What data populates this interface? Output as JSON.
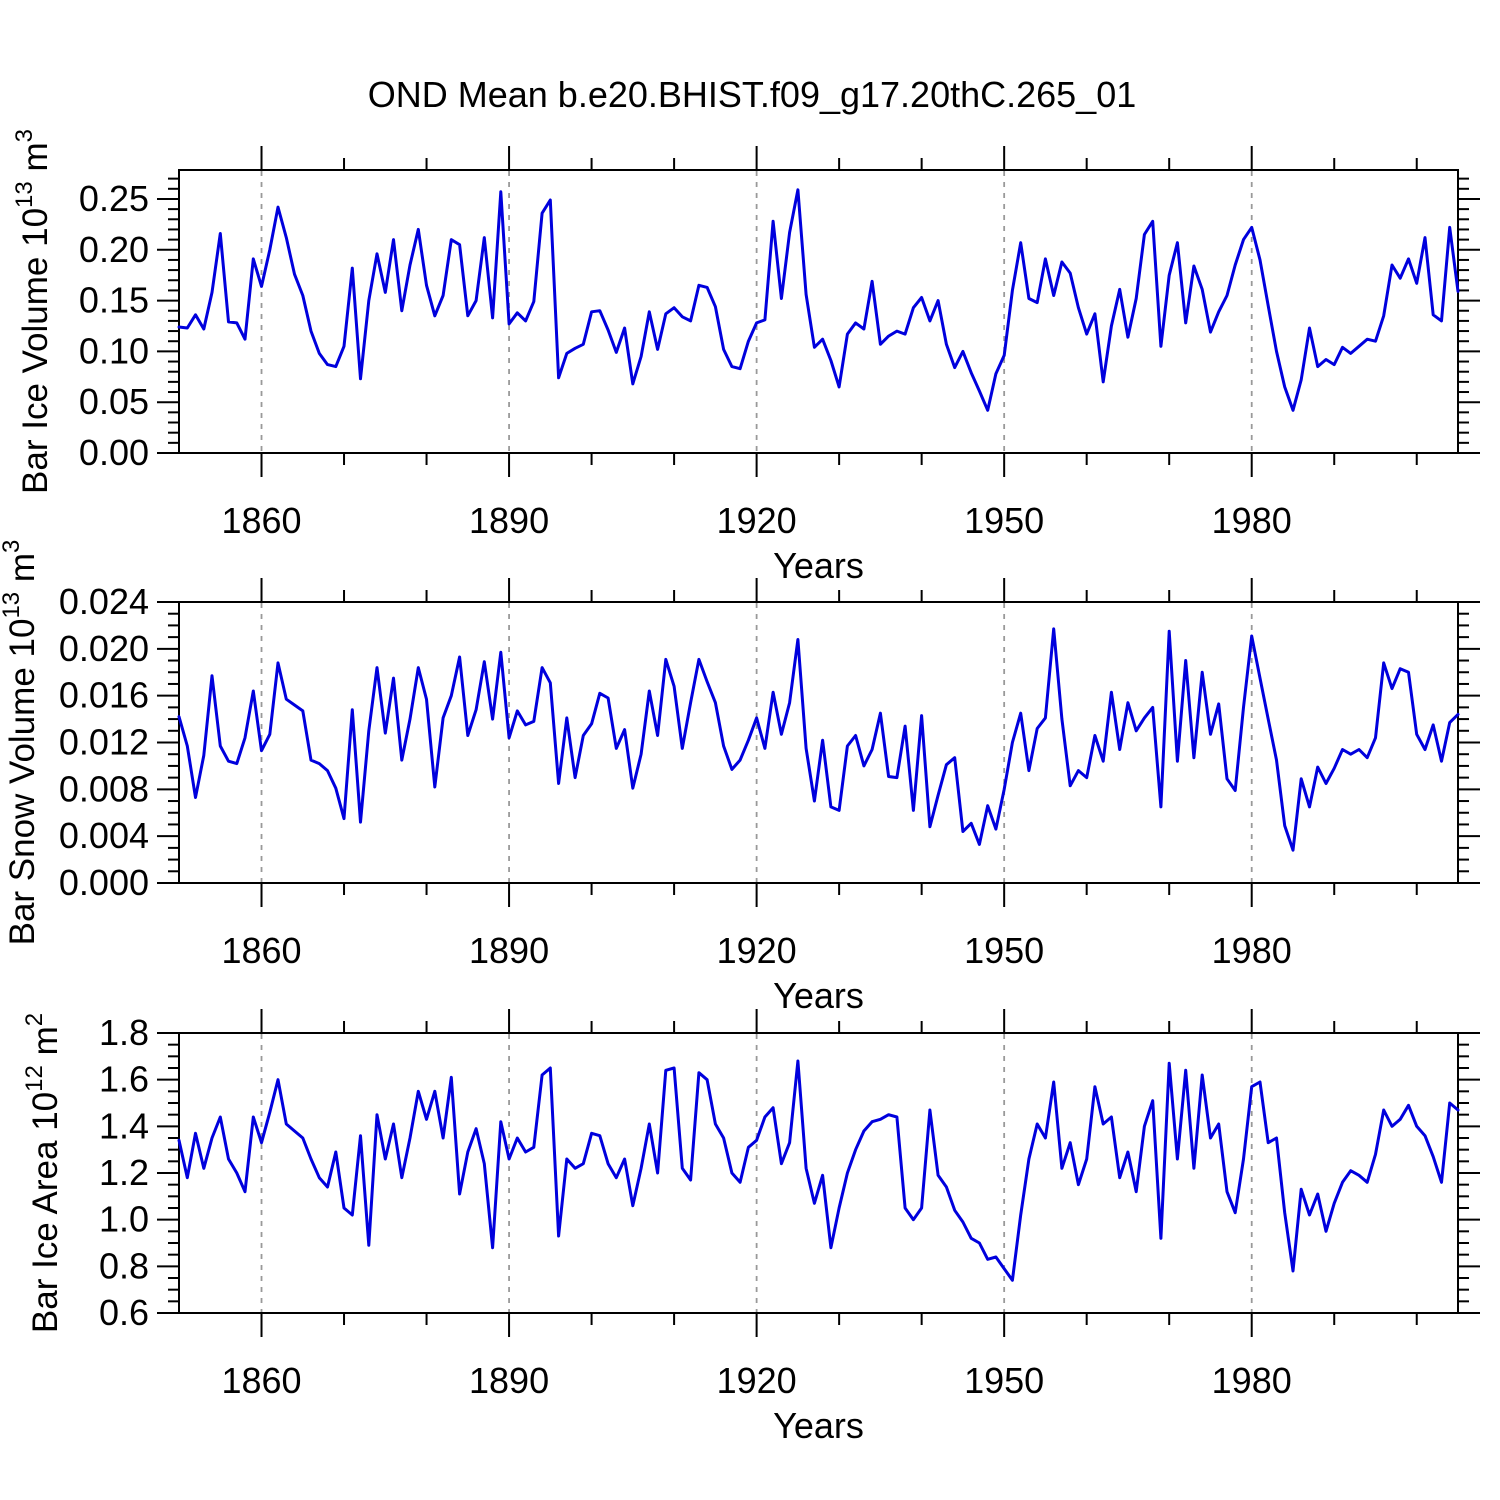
{
  "chart_data": {
    "type": "line",
    "title": "OND Mean b.e20.BHIST.f09_g17.20thC.265_01",
    "x_label": "Years",
    "x_range": [
      1850,
      2005
    ],
    "x_major_ticks": [
      1860,
      1890,
      1920,
      1950,
      1980
    ],
    "x_minor_ticks": [
      1870,
      1880,
      1900,
      1910,
      1930,
      1940,
      1960,
      1970,
      1990,
      2000
    ],
    "grid": {
      "vertical_dashed_at_major": true,
      "color": "#999999",
      "style": "dashed"
    },
    "legend": "none",
    "line_color": "#0000dd",
    "frame_color": "#000000",
    "background": "#ffffff",
    "years": [
      1850,
      1851,
      1852,
      1853,
      1854,
      1855,
      1856,
      1857,
      1858,
      1859,
      1860,
      1861,
      1862,
      1863,
      1864,
      1865,
      1866,
      1867,
      1868,
      1869,
      1870,
      1871,
      1872,
      1873,
      1874,
      1875,
      1876,
      1877,
      1878,
      1879,
      1880,
      1881,
      1882,
      1883,
      1884,
      1885,
      1886,
      1887,
      1888,
      1889,
      1890,
      1891,
      1892,
      1893,
      1894,
      1895,
      1896,
      1897,
      1898,
      1899,
      1900,
      1901,
      1902,
      1903,
      1904,
      1905,
      1906,
      1907,
      1908,
      1909,
      1910,
      1911,
      1912,
      1913,
      1914,
      1915,
      1916,
      1917,
      1918,
      1919,
      1920,
      1921,
      1922,
      1923,
      1924,
      1925,
      1926,
      1927,
      1928,
      1929,
      1930,
      1931,
      1932,
      1933,
      1934,
      1935,
      1936,
      1937,
      1938,
      1939,
      1940,
      1941,
      1942,
      1943,
      1944,
      1945,
      1946,
      1947,
      1948,
      1949,
      1950,
      1951,
      1952,
      1953,
      1954,
      1955,
      1956,
      1957,
      1958,
      1959,
      1960,
      1961,
      1962,
      1963,
      1964,
      1965,
      1966,
      1967,
      1968,
      1969,
      1970,
      1971,
      1972,
      1973,
      1974,
      1975,
      1976,
      1977,
      1978,
      1979,
      1980,
      1981,
      1982,
      1983,
      1984,
      1985,
      1986,
      1987,
      1988,
      1989,
      1990,
      1991,
      1992,
      1993,
      1994,
      1995,
      1996,
      1997,
      1998,
      1999,
      2000,
      2001,
      2002,
      2003,
      2004,
      2005
    ],
    "panels": [
      {
        "ylabel": "Bar Ice Volume 10^{13} m^{3}",
        "ylim": [
          0,
          0.2785
        ],
        "y_major_ticks": [
          0.0,
          0.05,
          0.1,
          0.15,
          0.2,
          0.25
        ],
        "y_tick_labels": [
          "0.00",
          "0.05",
          "0.10",
          "0.15",
          "0.20",
          "0.25"
        ],
        "y_minor_step": 0.01,
        "values": [
          0.124,
          0.123,
          0.136,
          0.122,
          0.158,
          0.216,
          0.129,
          0.128,
          0.112,
          0.191,
          0.164,
          0.2,
          0.242,
          0.212,
          0.176,
          0.155,
          0.12,
          0.098,
          0.087,
          0.085,
          0.105,
          0.182,
          0.073,
          0.15,
          0.196,
          0.158,
          0.21,
          0.14,
          0.185,
          0.22,
          0.165,
          0.135,
          0.155,
          0.21,
          0.205,
          0.135,
          0.15,
          0.212,
          0.133,
          0.257,
          0.127,
          0.138,
          0.13,
          0.149,
          0.236,
          0.249,
          0.074,
          0.098,
          0.103,
          0.107,
          0.139,
          0.14,
          0.121,
          0.099,
          0.123,
          0.068,
          0.095,
          0.139,
          0.102,
          0.137,
          0.143,
          0.134,
          0.13,
          0.165,
          0.163,
          0.144,
          0.102,
          0.085,
          0.083,
          0.11,
          0.128,
          0.131,
          0.228,
          0.152,
          0.217,
          0.259,
          0.156,
          0.104,
          0.112,
          0.091,
          0.065,
          0.117,
          0.128,
          0.122,
          0.169,
          0.107,
          0.115,
          0.12,
          0.117,
          0.143,
          0.153,
          0.13,
          0.15,
          0.107,
          0.084,
          0.1,
          0.079,
          0.061,
          0.042,
          0.078,
          0.096,
          0.16,
          0.207,
          0.152,
          0.148,
          0.191,
          0.155,
          0.188,
          0.177,
          0.143,
          0.117,
          0.137,
          0.07,
          0.125,
          0.161,
          0.114,
          0.152,
          0.215,
          0.228,
          0.105,
          0.175,
          0.207,
          0.128,
          0.184,
          0.161,
          0.119,
          0.139,
          0.155,
          0.185,
          0.21,
          0.222,
          0.19,
          0.145,
          0.1,
          0.065,
          0.042,
          0.072,
          0.123,
          0.085,
          0.092,
          0.087,
          0.104,
          0.098,
          0.105,
          0.112,
          0.11,
          0.135,
          0.185,
          0.172,
          0.191,
          0.167,
          0.212,
          0.136,
          0.13,
          0.222,
          0.159
        ]
      },
      {
        "ylabel": "Bar Snow Volume 10^{13} m^{3}",
        "ylim": [
          0,
          0.024
        ],
        "y_major_ticks": [
          0.0,
          0.004,
          0.008,
          0.012,
          0.016,
          0.02,
          0.024
        ],
        "y_tick_labels": [
          "0.000",
          "0.004",
          "0.008",
          "0.012",
          "0.016",
          "0.020",
          "0.024"
        ],
        "y_minor_step": 0.001,
        "values": [
          0.0142,
          0.0117,
          0.0073,
          0.0109,
          0.0177,
          0.0117,
          0.0104,
          0.0102,
          0.0124,
          0.0164,
          0.0113,
          0.0127,
          0.0188,
          0.0157,
          0.0152,
          0.0147,
          0.0105,
          0.0102,
          0.0096,
          0.0081,
          0.0055,
          0.0148,
          0.0052,
          0.013,
          0.0184,
          0.0128,
          0.0175,
          0.0105,
          0.014,
          0.0184,
          0.0157,
          0.0082,
          0.0141,
          0.016,
          0.0193,
          0.0126,
          0.0148,
          0.0189,
          0.014,
          0.0197,
          0.0124,
          0.0147,
          0.0135,
          0.0138,
          0.0184,
          0.0171,
          0.0085,
          0.0141,
          0.009,
          0.0126,
          0.0136,
          0.0162,
          0.0158,
          0.0115,
          0.0131,
          0.0081,
          0.011,
          0.0164,
          0.0126,
          0.0191,
          0.0168,
          0.0115,
          0.0154,
          0.0191,
          0.0172,
          0.0154,
          0.0117,
          0.0097,
          0.0105,
          0.0122,
          0.0141,
          0.0115,
          0.0163,
          0.0127,
          0.0154,
          0.0208,
          0.0115,
          0.007,
          0.0122,
          0.0065,
          0.0062,
          0.0117,
          0.0126,
          0.01,
          0.0114,
          0.0145,
          0.0091,
          0.009,
          0.0134,
          0.0062,
          0.0143,
          0.0048,
          0.0075,
          0.0101,
          0.0107,
          0.0044,
          0.0051,
          0.0033,
          0.0066,
          0.0046,
          0.008,
          0.012,
          0.0145,
          0.0096,
          0.0132,
          0.0141,
          0.0217,
          0.014,
          0.0083,
          0.0096,
          0.009,
          0.0126,
          0.0104,
          0.0163,
          0.0114,
          0.0154,
          0.013,
          0.0141,
          0.015,
          0.0065,
          0.0215,
          0.0104,
          0.019,
          0.0107,
          0.018,
          0.0127,
          0.0153,
          0.0089,
          0.0079,
          0.015,
          0.0211,
          0.0175,
          0.014,
          0.0105,
          0.0049,
          0.0028,
          0.0089,
          0.0065,
          0.0099,
          0.0085,
          0.0098,
          0.0114,
          0.011,
          0.0114,
          0.0107,
          0.0124,
          0.0188,
          0.0166,
          0.0183,
          0.018,
          0.0127,
          0.0114,
          0.0135,
          0.0104,
          0.0137,
          0.0144
        ]
      },
      {
        "ylabel": "Bar Ice Area 10^{12} m^{2}",
        "ylim": [
          0.6,
          1.8
        ],
        "y_major_ticks": [
          0.6,
          0.8,
          1.0,
          1.2,
          1.4,
          1.6,
          1.8
        ],
        "y_tick_labels": [
          "0.6",
          "0.8",
          "1.0",
          "1.2",
          "1.4",
          "1.6",
          "1.8"
        ],
        "y_minor_step": 0.05,
        "values": [
          1.34,
          1.18,
          1.37,
          1.22,
          1.35,
          1.44,
          1.26,
          1.2,
          1.12,
          1.44,
          1.33,
          1.46,
          1.6,
          1.41,
          1.38,
          1.35,
          1.26,
          1.18,
          1.14,
          1.29,
          1.05,
          1.02,
          1.36,
          0.89,
          1.45,
          1.26,
          1.41,
          1.18,
          1.35,
          1.55,
          1.43,
          1.55,
          1.35,
          1.61,
          1.11,
          1.29,
          1.39,
          1.24,
          0.88,
          1.42,
          1.26,
          1.35,
          1.29,
          1.31,
          1.62,
          1.65,
          0.93,
          1.26,
          1.22,
          1.24,
          1.37,
          1.36,
          1.24,
          1.18,
          1.26,
          1.06,
          1.22,
          1.41,
          1.2,
          1.64,
          1.65,
          1.22,
          1.17,
          1.63,
          1.6,
          1.41,
          1.35,
          1.2,
          1.16,
          1.31,
          1.34,
          1.44,
          1.48,
          1.24,
          1.33,
          1.68,
          1.22,
          1.07,
          1.19,
          0.88,
          1.05,
          1.2,
          1.3,
          1.38,
          1.42,
          1.43,
          1.45,
          1.44,
          1.05,
          1.0,
          1.05,
          1.47,
          1.19,
          1.14,
          1.04,
          0.99,
          0.92,
          0.9,
          0.83,
          0.84,
          0.79,
          0.74,
          1.02,
          1.26,
          1.41,
          1.35,
          1.59,
          1.22,
          1.33,
          1.15,
          1.26,
          1.57,
          1.41,
          1.44,
          1.18,
          1.29,
          1.12,
          1.4,
          1.51,
          0.92,
          1.67,
          1.26,
          1.64,
          1.22,
          1.62,
          1.35,
          1.41,
          1.12,
          1.03,
          1.26,
          1.57,
          1.59,
          1.33,
          1.35,
          1.03,
          0.78,
          1.13,
          1.02,
          1.11,
          0.95,
          1.07,
          1.16,
          1.21,
          1.19,
          1.16,
          1.28,
          1.47,
          1.4,
          1.43,
          1.49,
          1.4,
          1.36,
          1.27,
          1.16,
          1.5,
          1.47
        ]
      }
    ]
  }
}
